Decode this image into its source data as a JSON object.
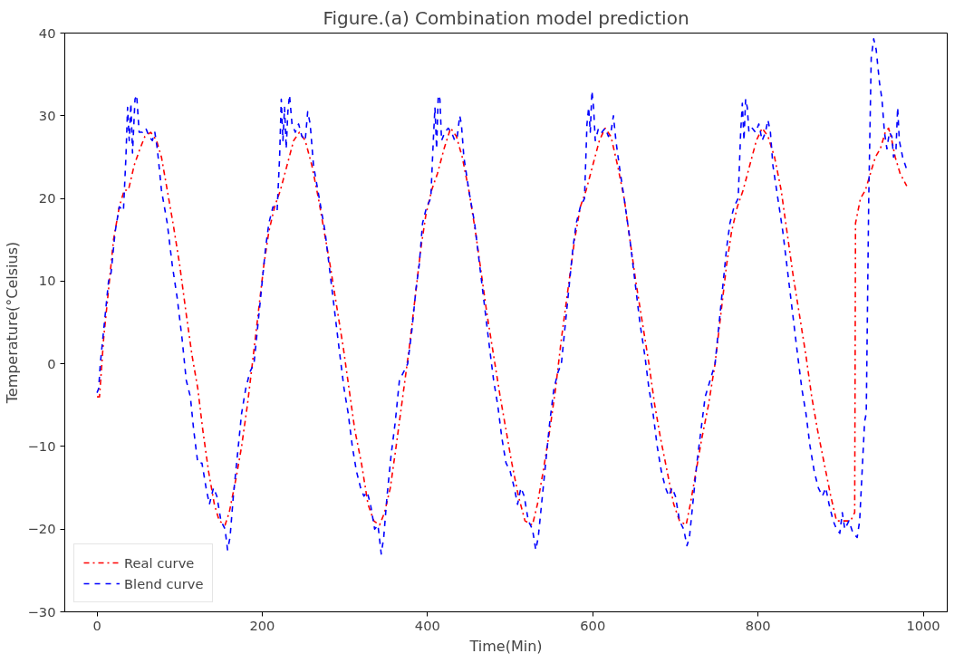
{
  "chart_data": {
    "type": "line",
    "title": "Figure.(a) Combination model prediction",
    "xlabel": "Time(Min)",
    "ylabel": "Temperature(°Celsius)",
    "xlim": [
      -39,
      1029
    ],
    "ylim": [
      -30,
      40
    ],
    "xticks": [
      0,
      200,
      400,
      600,
      800,
      1000
    ],
    "yticks": [
      -30,
      -20,
      -10,
      0,
      10,
      20,
      30,
      40
    ],
    "grid": false,
    "legend": "bottom left",
    "marker": "none",
    "series": [
      {
        "name": "Real curve",
        "color": "#ff0000",
        "line_style": "dashdot",
        "x": [
          0,
          3,
          8,
          15,
          20,
          27,
          33,
          38,
          45,
          52,
          58,
          65,
          72,
          78,
          85,
          92,
          100,
          108,
          115,
          122,
          128,
          135,
          142,
          148,
          155,
          160,
          168,
          175,
          182,
          188,
          195,
          202,
          208,
          215,
          222,
          230,
          238,
          245,
          252,
          260,
          268,
          275,
          282,
          290,
          298,
          305,
          312,
          320,
          328,
          335,
          342,
          348,
          355,
          362,
          370,
          378,
          385,
          392,
          398,
          405,
          412,
          420,
          428,
          435,
          442,
          450,
          458,
          465,
          472,
          480,
          488,
          495,
          502,
          510,
          518,
          527,
          533,
          540,
          548,
          555,
          562,
          570,
          578,
          585,
          592,
          600,
          608,
          615,
          622,
          630,
          638,
          645,
          652,
          660,
          668,
          675,
          682,
          690,
          698,
          705,
          713,
          718,
          725,
          732,
          740,
          748,
          755,
          762,
          768,
          775,
          782,
          790,
          798,
          805,
          812,
          820,
          828,
          835,
          842,
          850,
          858,
          865,
          872,
          880,
          888,
          895,
          905,
          912,
          917,
          918,
          924,
          930,
          936,
          942,
          948,
          954,
          958,
          962,
          966,
          972,
          980
        ],
        "values": [
          -4,
          -4,
          3,
          10,
          15,
          19,
          21,
          21,
          24,
          26,
          27.5,
          28,
          27,
          25,
          21,
          17,
          12,
          6,
          1,
          -3,
          -8,
          -13,
          -17,
          -19,
          -19.5,
          -18,
          -14,
          -10,
          -5,
          0,
          6,
          12,
          16,
          19,
          21,
          24,
          27,
          28,
          27,
          24,
          20,
          16,
          12,
          7,
          2,
          -3,
          -8,
          -12,
          -17,
          -19,
          -19.5,
          -18,
          -15,
          -10,
          -4,
          2,
          8,
          14,
          18,
          21,
          23,
          26,
          28.5,
          27.5,
          25,
          21,
          16,
          11,
          6,
          1,
          -4,
          -8,
          -12,
          -16,
          -19,
          -19.5,
          -17,
          -13,
          -8,
          -3,
          3,
          9,
          15,
          19,
          21,
          24,
          27,
          28.5,
          27.5,
          24,
          20,
          15,
          10,
          5,
          0,
          -5,
          -9,
          -13,
          -17,
          -19,
          -19.5,
          -17,
          -13,
          -9,
          -5,
          0,
          6,
          12,
          16,
          19,
          21,
          24,
          27,
          28.5,
          27.5,
          25,
          21,
          16,
          11,
          6,
          1,
          -4,
          -8,
          -12,
          -16,
          -19,
          -19,
          -19,
          -18,
          17,
          20,
          21,
          23,
          25,
          26,
          28,
          28.5,
          27,
          25,
          23,
          21.5
        ]
      },
      {
        "name": "Blend curve",
        "color": "#0000ff",
        "line_style": "dashed",
        "x": [
          0,
          2,
          4,
          9,
          14,
          17,
          22,
          27,
          32,
          35,
          37,
          39,
          41,
          43,
          46,
          48,
          51,
          55,
          59,
          63,
          67,
          70,
          73,
          78,
          85,
          91,
          97,
          103,
          108,
          113,
          117,
          122,
          127,
          132,
          136,
          141,
          145,
          150,
          155,
          158,
          161,
          165,
          170,
          175,
          180,
          185,
          190,
          195,
          200,
          204,
          208,
          213,
          218,
          221,
          223,
          225,
          227,
          229,
          231,
          233,
          236,
          240,
          244,
          248,
          252,
          255,
          258,
          262,
          269,
          276,
          282,
          288,
          294,
          299,
          304,
          309,
          314,
          319,
          323,
          327,
          331,
          336,
          340,
          344,
          347,
          351,
          356,
          361,
          366,
          371,
          376,
          381,
          386,
          390,
          394,
          399,
          404,
          407,
          409,
          411,
          413,
          415,
          417,
          421,
          425,
          429,
          433,
          436,
          439,
          441,
          444,
          450,
          457,
          463,
          469,
          475,
          480,
          485,
          490,
          495,
          500,
          505,
          509,
          513,
          517,
          522,
          527,
          531,
          534,
          538,
          543,
          548,
          553,
          558,
          562,
          567,
          572,
          576,
          580,
          585,
          590,
          593,
          595,
          597,
          599,
          601,
          603,
          607,
          611,
          615,
          619,
          622,
          625,
          628,
          632,
          638,
          645,
          651,
          657,
          663,
          668,
          673,
          678,
          683,
          688,
          692,
          696,
          700,
          705,
          710,
          714,
          717,
          721,
          726,
          731,
          736,
          742,
          748,
          753,
          758,
          762,
          766,
          771,
          776,
          779,
          781,
          783,
          785,
          787,
          789,
          793,
          797,
          801,
          805,
          809,
          812,
          815,
          818,
          824,
          830,
          836,
          842,
          848,
          853,
          858,
          863,
          868,
          873,
          878,
          882,
          886,
          891,
          895,
          899,
          902,
          905,
          910,
          915,
          920,
          923,
          926,
          929,
          931,
          934,
          937,
          940,
          943,
          947,
          950,
          953,
          956,
          959,
          962,
          964,
          967,
          969,
          971,
          975,
          980
        ],
        "values": [
          -3.5,
          -3,
          0,
          5,
          10,
          11,
          16,
          19,
          18.5,
          25,
          31,
          27,
          31.5,
          25.5,
          32,
          32.5,
          28,
          28,
          28.5,
          27.5,
          27,
          28,
          26,
          21,
          17,
          12,
          8,
          3,
          -2,
          -4,
          -8,
          -12,
          -12,
          -15,
          -17,
          -15,
          -16,
          -19,
          -20,
          -22.5,
          -21,
          -16,
          -11,
          -6,
          -3,
          -1,
          0,
          5,
          10,
          14,
          17,
          19,
          18.5,
          25,
          32,
          27,
          31,
          26,
          30.5,
          32.5,
          29,
          28,
          29,
          27.5,
          27,
          30.5,
          29,
          24,
          20,
          16,
          11,
          6,
          1,
          -3,
          -6,
          -10,
          -13,
          -15,
          -16,
          -15.5,
          -17,
          -20,
          -19.5,
          -23,
          -21,
          -16,
          -11,
          -7,
          -2,
          -1,
          0,
          4,
          9,
          12,
          17,
          19,
          20,
          27,
          31,
          26,
          32.5,
          32,
          27,
          28,
          28.5,
          28,
          27,
          27.5,
          30,
          29,
          25,
          21,
          17,
          12,
          7,
          2,
          -2,
          -5,
          -9,
          -12,
          -13,
          -15,
          -17,
          -15,
          -16,
          -19,
          -20,
          -22.5,
          -21,
          -17,
          -12,
          -7,
          -3,
          -1,
          0,
          5,
          10,
          14,
          17,
          19,
          20,
          29,
          31,
          28,
          33,
          31,
          27,
          28.5,
          28,
          28.5,
          27.5,
          28,
          30,
          27,
          24,
          20,
          15,
          10,
          5,
          1,
          -3,
          -6,
          -10,
          -13,
          -15,
          -16,
          -15,
          -16,
          -19,
          -20,
          -22,
          -21,
          -17,
          -12,
          -8,
          -4,
          -2,
          0,
          5,
          10,
          14,
          17,
          19,
          20,
          28,
          31.5,
          27,
          32,
          31,
          28,
          28.5,
          28,
          29,
          27,
          28,
          29.5,
          28,
          24,
          20,
          16,
          11,
          6,
          1,
          -3,
          -6,
          -10,
          -13,
          -15,
          -16,
          -15,
          -17,
          -19,
          -20,
          -20.5,
          -18,
          -20,
          -19,
          -20.5,
          -21,
          -19,
          -13,
          -7,
          -6,
          20,
          37,
          39.3,
          38,
          34,
          32,
          28,
          26,
          28,
          27.5,
          25,
          26,
          31,
          27,
          25,
          23.5
        ]
      }
    ]
  }
}
